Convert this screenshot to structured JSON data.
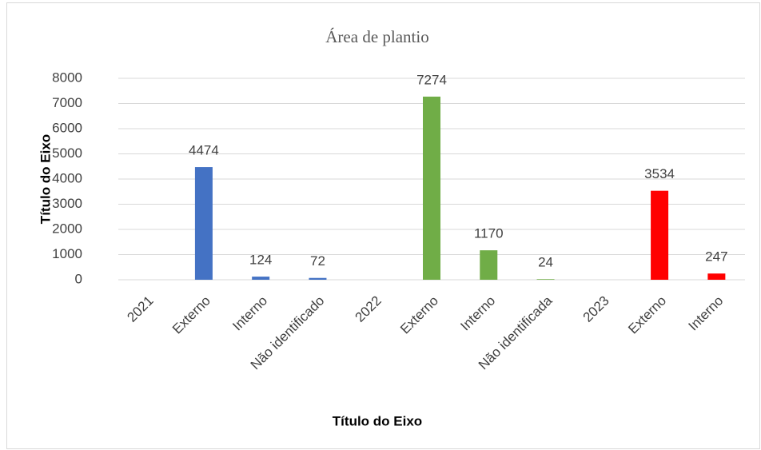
{
  "chart_data": {
    "type": "bar",
    "title": "Área de plantio",
    "x_label": "Título do Eixo",
    "y_label": "Título do Eixo",
    "categories": [
      "2021",
      "Externo",
      "Interno",
      "Não identificado",
      "2022",
      "Externo",
      "Interno",
      "Não identificada",
      "2023",
      "Externo",
      "Interno"
    ],
    "values": [
      null,
      4474,
      124,
      72,
      null,
      7274,
      1170,
      24,
      null,
      3534,
      247
    ],
    "colors": [
      "#4472c4",
      "#4472c4",
      "#4472c4",
      "#4472c4",
      "#70ad47",
      "#70ad47",
      "#70ad47",
      "#70ad47",
      "#ff0000",
      "#ff0000",
      "#ff0000"
    ],
    "ylim": [
      0,
      8000
    ],
    "yticks": [
      0,
      1000,
      2000,
      3000,
      4000,
      5000,
      6000,
      7000,
      8000
    ],
    "grid": true
  }
}
